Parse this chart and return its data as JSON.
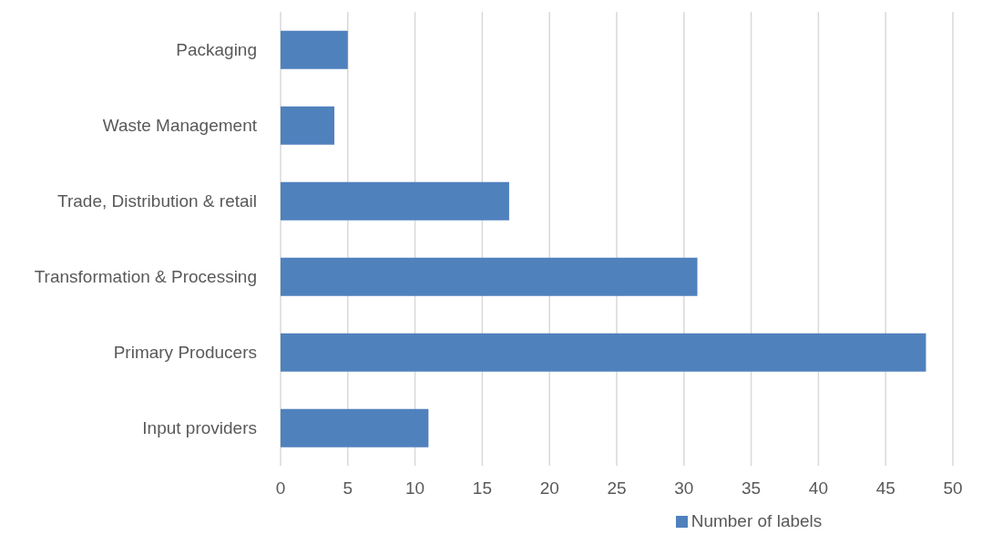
{
  "chart_data": {
    "type": "bar",
    "orientation": "horizontal",
    "categories": [
      "Packaging",
      "Waste Management",
      "Trade, Distribution & retail",
      "Transformation & Processing",
      "Primary Producers",
      "Input providers"
    ],
    "series": [
      {
        "name": "Number of labels",
        "color": "#4f81bd",
        "values": [
          5,
          4,
          17,
          31,
          48,
          11
        ]
      }
    ],
    "xlim": [
      0,
      50
    ],
    "xticks": [
      0,
      5,
      10,
      15,
      20,
      25,
      30,
      35,
      40,
      45,
      50
    ],
    "grid": "x",
    "legend": "bottom"
  }
}
